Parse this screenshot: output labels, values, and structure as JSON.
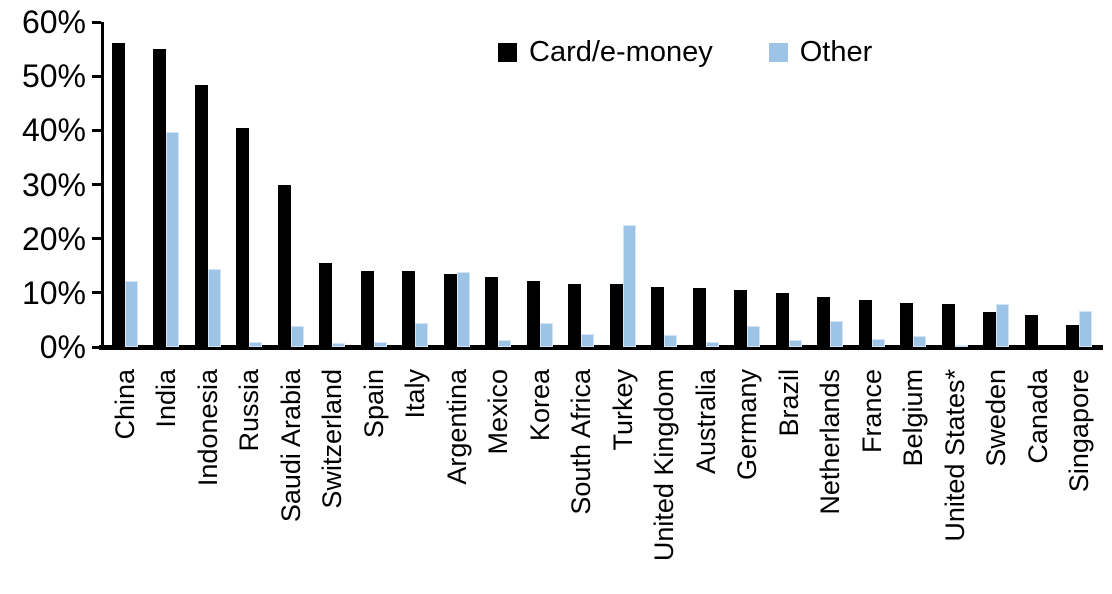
{
  "chart_data": {
    "type": "bar",
    "title": "",
    "xlabel": "",
    "ylabel": "",
    "ylim": [
      0,
      60
    ],
    "grid": false,
    "legend_position": "top-center",
    "y_ticks": [
      "60%",
      "50%",
      "40%",
      "30%",
      "20%",
      "10%",
      "0%"
    ],
    "categories": [
      "China",
      "India",
      "Indonesia",
      "Russia",
      "Saudi Arabia",
      "Switzerland",
      "Spain",
      "Italy",
      "Argentina",
      "Mexico",
      "Korea",
      "South Africa",
      "Turkey",
      "United Kingdom",
      "Australia",
      "Germany",
      "Brazil",
      "Netherlands",
      "France",
      "Belgium",
      "United States*",
      "Sweden",
      "Canada",
      "Singapore"
    ],
    "series": [
      {
        "name": "Card/e-money",
        "color": "#000000",
        "values": [
          56.2,
          55.0,
          48.3,
          40.5,
          29.9,
          15.5,
          14.1,
          14.1,
          13.4,
          12.9,
          12.1,
          11.6,
          11.6,
          11.1,
          10.8,
          10.5,
          9.9,
          9.2,
          8.6,
          8.1,
          7.9,
          6.5,
          5.9,
          4.0
        ]
      },
      {
        "name": "Other",
        "color": "#9DC3E6",
        "values": [
          12.2,
          39.6,
          14.4,
          1.0,
          3.9,
          0.8,
          1.0,
          4.5,
          13.9,
          1.3,
          4.5,
          2.4,
          22.5,
          2.2,
          1.0,
          3.9,
          1.2,
          4.8,
          1.5,
          2.0,
          0.3,
          7.9,
          0,
          6.6
        ]
      }
    ]
  }
}
